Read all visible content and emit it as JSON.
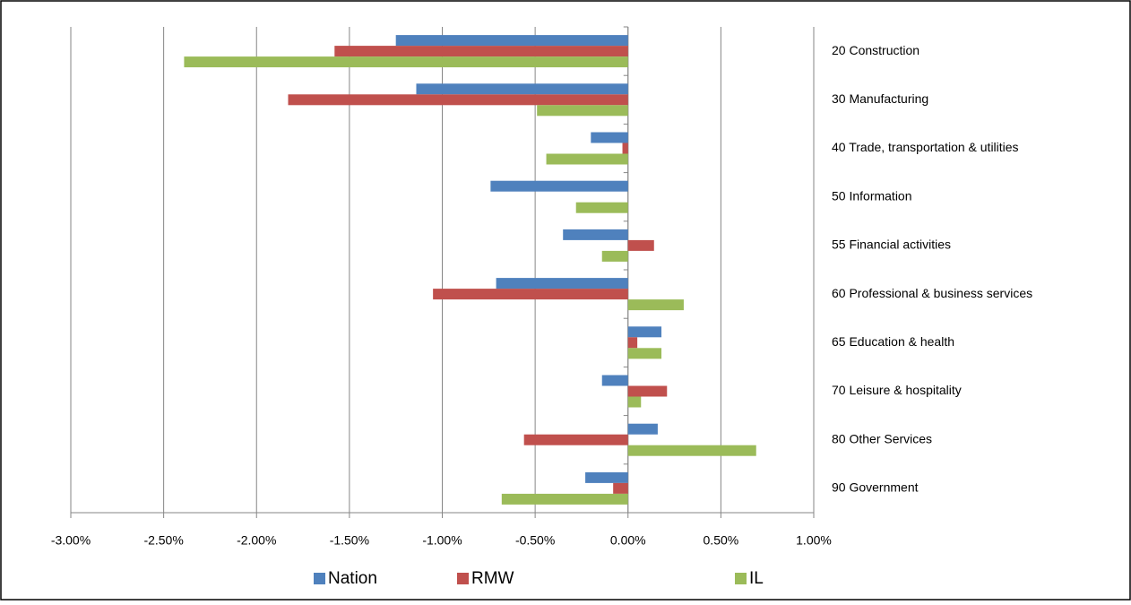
{
  "chart_data": {
    "type": "bar",
    "orientation": "horizontal",
    "categories": [
      "20 Construction",
      "30 Manufacturing",
      "40 Trade, transportation  & utilities",
      "50 Information",
      "55 Financial activities",
      "60 Professional & business services",
      "65 Education  & health",
      "70 Leisure & hospitality",
      "80 Other Services",
      "90 Government"
    ],
    "series": [
      {
        "name": "Nation",
        "color": "#4f81bd",
        "values": [
          -1.25,
          -1.14,
          -0.2,
          -0.74,
          -0.35,
          -0.71,
          0.18,
          -0.14,
          0.16,
          -0.23
        ]
      },
      {
        "name": "RMW",
        "color": "#c0504d",
        "values": [
          -1.58,
          -1.83,
          -0.03,
          0,
          0.14,
          -1.05,
          0.05,
          0.21,
          -0.56,
          -0.08
        ]
      },
      {
        "name": "IL",
        "color": "#9bbb59",
        "values": [
          -2.39,
          -0.49,
          -0.44,
          -0.28,
          -0.14,
          0.3,
          0.18,
          0.07,
          0.69,
          -0.68
        ]
      }
    ],
    "xlim": [
      -3,
      1
    ],
    "xticks": [
      {
        "value": -3,
        "label": "-3.00%"
      },
      {
        "value": -2.5,
        "label": "-2.50%"
      },
      {
        "value": -2,
        "label": "-2.00%"
      },
      {
        "value": -1.5,
        "label": "-1.50%"
      },
      {
        "value": -1,
        "label": "-1.00%"
      },
      {
        "value": -0.5,
        "label": "-0.50%"
      },
      {
        "value": 0,
        "label": "0.00%"
      },
      {
        "value": 0.5,
        "label": "0.50%"
      },
      {
        "value": 1,
        "label": "1.00%"
      }
    ],
    "grid": true,
    "legend": "bottom"
  }
}
